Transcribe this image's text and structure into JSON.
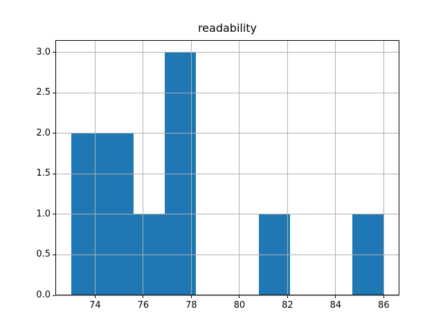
{
  "chart_data": {
    "type": "bar",
    "subtype": "histogram",
    "title": "readability",
    "bin_edges": [
      73.0,
      74.3,
      75.6,
      76.9,
      78.2,
      79.5,
      80.8,
      82.1,
      83.4,
      84.7,
      86.0
    ],
    "counts": [
      2,
      2,
      1,
      3,
      0,
      0,
      1,
      0,
      0,
      1
    ],
    "xlabel": "",
    "ylabel": "",
    "xlim": [
      72.35,
      86.65
    ],
    "ylim": [
      0,
      3.15
    ],
    "x_tick_values": [
      74,
      76,
      78,
      80,
      82,
      84,
      86
    ],
    "x_tick_labels": [
      "74",
      "76",
      "78",
      "80",
      "82",
      "84",
      "86"
    ],
    "y_tick_values": [
      0.0,
      0.5,
      1.0,
      1.5,
      2.0,
      2.5,
      3.0
    ],
    "y_tick_labels": [
      "0.0",
      "0.5",
      "1.0",
      "1.5",
      "2.0",
      "2.5",
      "3.0"
    ],
    "grid": true,
    "grid_on_top_of_bars": true,
    "legend": null,
    "colors": {
      "bar": "#1f77b4",
      "grid": "#b0b0b0",
      "spine": "#000000",
      "text": "#000000",
      "background": "#ffffff"
    }
  }
}
